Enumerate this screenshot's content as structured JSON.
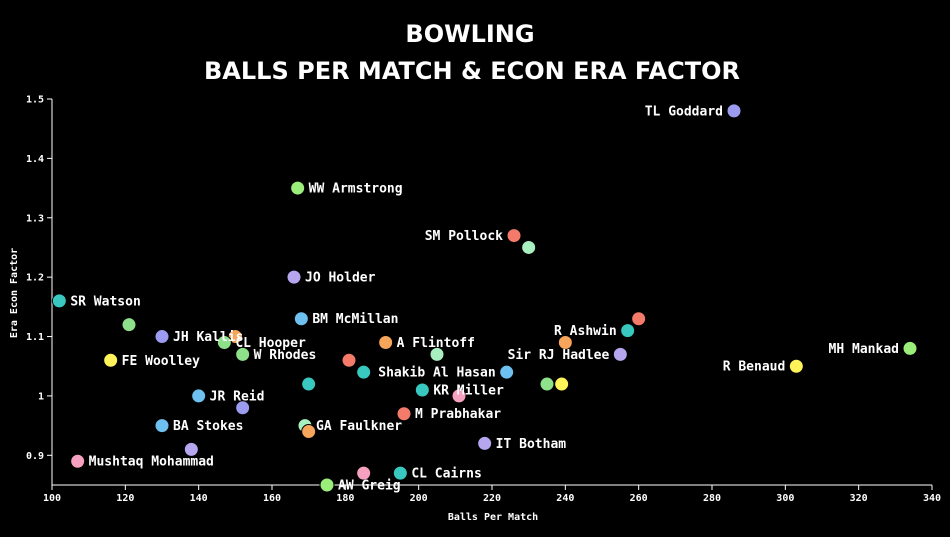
{
  "chart_data": {
    "type": "scatter",
    "title": [
      "BOWLING",
      "BALLS PER MATCH & ECON ERA FACTOR"
    ],
    "xlabel": "Balls Per Match",
    "ylabel": "Era Econ Factor",
    "xlim": [
      100,
      340
    ],
    "ylim": [
      0.85,
      1.5
    ],
    "xticks": [
      100,
      120,
      140,
      160,
      180,
      200,
      220,
      240,
      260,
      280,
      300,
      320,
      340
    ],
    "yticks": [
      0.9,
      1,
      1.1,
      1.2,
      1.3,
      1.4,
      1.5
    ],
    "points": [
      {
        "x": 286,
        "y": 1.48,
        "label": "TL Goddard",
        "color": "#9b9bf0",
        "side": "left"
      },
      {
        "x": 167,
        "y": 1.35,
        "label": "WW Armstrong",
        "color": "#9bee79",
        "side": "right"
      },
      {
        "x": 226,
        "y": 1.27,
        "label": "SM Pollock",
        "color": "#f47b6a",
        "side": "left"
      },
      {
        "x": 230,
        "y": 1.25,
        "label": "",
        "color": "#a8f0c0",
        "side": "right"
      },
      {
        "x": 166,
        "y": 1.2,
        "label": "JO Holder",
        "color": "#b6a6f0",
        "side": "right"
      },
      {
        "x": 102,
        "y": 1.16,
        "label": "SR Watson",
        "color": "#39c8c0",
        "side": "right"
      },
      {
        "x": 168,
        "y": 1.13,
        "label": "BM McMillan",
        "color": "#6ec0f0",
        "side": "right"
      },
      {
        "x": 121,
        "y": 1.12,
        "label": "",
        "color": "#8fe08a",
        "side": "right"
      },
      {
        "x": 130,
        "y": 1.1,
        "label": "JH Kallis",
        "color": "#9b9bf0",
        "side": "right"
      },
      {
        "x": 150,
        "y": 1.1,
        "label": "",
        "color": "#f7a55a",
        "side": "right"
      },
      {
        "x": 147,
        "y": 1.09,
        "label": "CL Hooper",
        "color": "#8fe08a",
        "side": "right"
      },
      {
        "x": 260,
        "y": 1.13,
        "label": "",
        "color": "#f47b6a",
        "side": "right"
      },
      {
        "x": 257,
        "y": 1.11,
        "label": "R Ashwin",
        "color": "#39c8c0",
        "side": "left"
      },
      {
        "x": 240,
        "y": 1.09,
        "label": "",
        "color": "#f7a55a",
        "side": "right"
      },
      {
        "x": 191,
        "y": 1.09,
        "label": "A Flintoff",
        "color": "#f7a55a",
        "side": "right"
      },
      {
        "x": 334,
        "y": 1.08,
        "label": "MH Mankad",
        "color": "#9bee79",
        "side": "left"
      },
      {
        "x": 152,
        "y": 1.07,
        "label": "W Rhodes",
        "color": "#8fe08a",
        "side": "right"
      },
      {
        "x": 205,
        "y": 1.07,
        "label": "",
        "color": "#a8f0c0",
        "side": "right"
      },
      {
        "x": 255,
        "y": 1.07,
        "label": "Sir RJ Hadlee",
        "color": "#b6a6f0",
        "side": "left"
      },
      {
        "x": 116,
        "y": 1.06,
        "label": "FE Woolley",
        "color": "#fff35a",
        "side": "right"
      },
      {
        "x": 181,
        "y": 1.06,
        "label": "",
        "color": "#f47b6a",
        "side": "right"
      },
      {
        "x": 303,
        "y": 1.05,
        "label": "R Benaud",
        "color": "#fff35a",
        "side": "left"
      },
      {
        "x": 185,
        "y": 1.04,
        "label": "",
        "color": "#39c8c0",
        "side": "right"
      },
      {
        "x": 224,
        "y": 1.04,
        "label": "Shakib Al Hasan",
        "color": "#6ec0f0",
        "side": "left"
      },
      {
        "x": 170,
        "y": 1.02,
        "label": "",
        "color": "#39c8c0",
        "side": "right"
      },
      {
        "x": 235,
        "y": 1.02,
        "label": "",
        "color": "#8fe08a",
        "side": "right"
      },
      {
        "x": 239,
        "y": 1.02,
        "label": "",
        "color": "#fff35a",
        "side": "right"
      },
      {
        "x": 201,
        "y": 1.01,
        "label": "KR Miller",
        "color": "#39c8c0",
        "side": "right"
      },
      {
        "x": 140,
        "y": 1.0,
        "label": "JR Reid",
        "color": "#6ec0f0",
        "side": "right"
      },
      {
        "x": 211,
        "y": 1.0,
        "label": "",
        "color": "#f7a1c0",
        "side": "right"
      },
      {
        "x": 152,
        "y": 0.98,
        "label": "",
        "color": "#9b9bf0",
        "side": "right"
      },
      {
        "x": 196,
        "y": 0.97,
        "label": "M Prabhakar",
        "color": "#f47b6a",
        "side": "right"
      },
      {
        "x": 130,
        "y": 0.95,
        "label": "BA Stokes",
        "color": "#6ec0f0",
        "side": "right"
      },
      {
        "x": 169,
        "y": 0.95,
        "label": "",
        "color": "#a8f0c0",
        "side": "right"
      },
      {
        "x": 170,
        "y": 0.94,
        "label": "GA Faulkner",
        "color": "#f7a55a",
        "side": "right",
        "lx": 169,
        "ly": 0.95
      },
      {
        "x": 218,
        "y": 0.92,
        "label": "IT Botham",
        "color": "#b6a6f0",
        "side": "right"
      },
      {
        "x": 138,
        "y": 0.91,
        "label": "",
        "color": "#b6a6f0",
        "side": "right"
      },
      {
        "x": 107,
        "y": 0.89,
        "label": "Mushtaq Mohammad",
        "color": "#f7a1c0",
        "side": "right"
      },
      {
        "x": 185,
        "y": 0.87,
        "label": "",
        "color": "#f7a1c0",
        "side": "right"
      },
      {
        "x": 195,
        "y": 0.87,
        "label": "CL Cairns",
        "color": "#39c8c0",
        "side": "right"
      },
      {
        "x": 175,
        "y": 0.85,
        "label": "AW Greig",
        "color": "#9bee79",
        "side": "right"
      }
    ]
  }
}
